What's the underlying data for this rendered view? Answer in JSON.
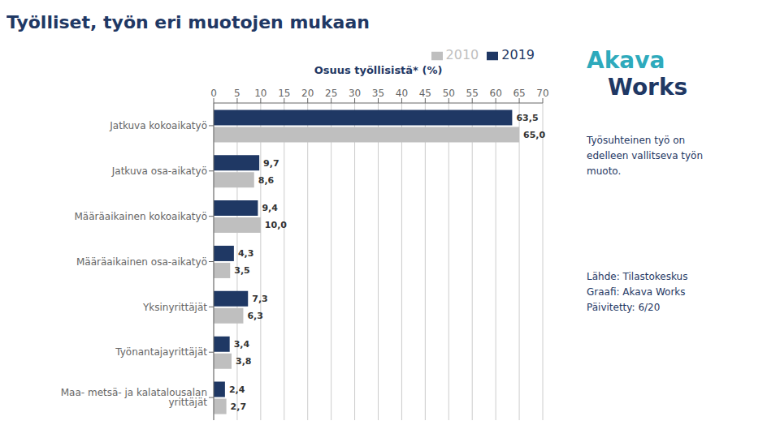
{
  "chart_data": {
    "type": "bar",
    "orientation": "horizontal",
    "title": "Työlliset, työn eri muotojen mukaan",
    "xlabel": "Osuus työllisistä* (%)",
    "categories": [
      "Maa- metsä- ja kalatalousalan yrittäjät",
      "Työnantajayrittäjät",
      "Yksinyrittäjät",
      "Määräaikainen osa-aikatyö",
      "Määräaikainen kokoaikatyö",
      "Jatkuva osa-aikatyö",
      "Jatkuva kokoaikatyö"
    ],
    "series": [
      {
        "name": "2019",
        "color": "#1F3864",
        "values": [
          2.4,
          3.4,
          7.3,
          4.3,
          9.4,
          9.7,
          63.5
        ],
        "value_labels": [
          "2,4",
          "3,4",
          "7,3",
          "4,3",
          "9,4",
          "9,7",
          "63,5"
        ]
      },
      {
        "name": "2010",
        "color": "#BFBFBF",
        "values": [
          2.7,
          3.8,
          6.3,
          3.5,
          10.0,
          8.6,
          65.0
        ],
        "value_labels": [
          "2,7",
          "3,8",
          "6,3",
          "3,5",
          "10,0",
          "8,6",
          "65,0"
        ]
      }
    ],
    "xlim": [
      0,
      70
    ],
    "xticks": [
      0,
      5,
      10,
      15,
      20,
      25,
      30,
      35,
      40,
      45,
      50,
      55,
      60,
      65,
      70
    ],
    "grid": true,
    "legend": "upper right",
    "data_labels": true,
    "annotations": [
      "Akava",
      "Works",
      "Työsuhteinen työ on\nedelleen vallitseva työn\nmuoto.",
      "Lähde: Tilastokeskus\nGraafi:  Akava Works\nPäivitetty: 6/20"
    ]
  }
}
